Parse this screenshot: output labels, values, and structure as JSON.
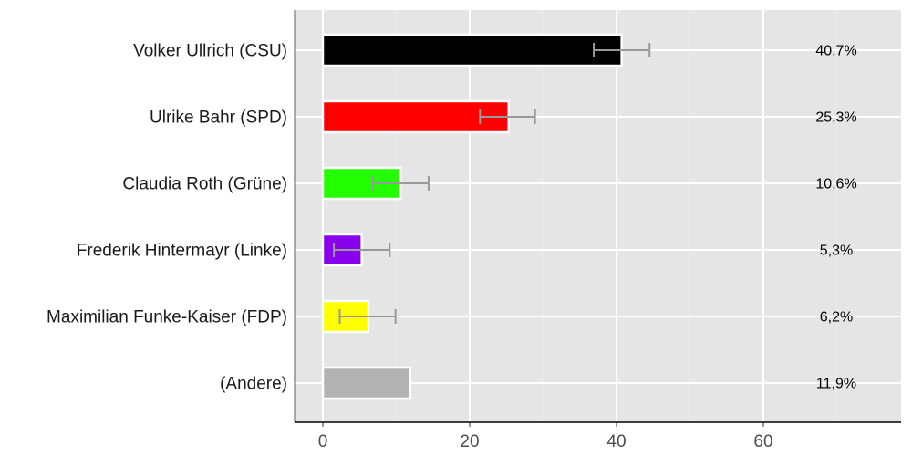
{
  "chart_data": {
    "type": "bar",
    "orientation": "horizontal",
    "title": "",
    "xlabel": "",
    "ylabel": "",
    "xlim": [
      -3.8,
      78.8
    ],
    "x_ticks": [
      0,
      20,
      40,
      60
    ],
    "x_tick_labels": [
      "0",
      "20",
      "40",
      "60"
    ],
    "grid": true,
    "legend": "none",
    "categories": [
      "Volker Ullrich (CSU)",
      "Ulrike Bahr (SPD)",
      "Claudia Roth (Grüne)",
      "Frederik Hintermayr (Linke)",
      "Maximilian Funke-Kaiser (FDP)",
      "(Andere)"
    ],
    "values": [
      40.7,
      25.3,
      10.6,
      5.3,
      6.2,
      11.9
    ],
    "value_labels": [
      "40,7%",
      "25,3%",
      "10,6%",
      "5,3%",
      "6,2%",
      "11,9%"
    ],
    "error_low": [
      36.9,
      21.4,
      6.8,
      1.5,
      2.3,
      null
    ],
    "error_high": [
      44.5,
      28.9,
      14.4,
      9.1,
      9.9,
      null
    ],
    "colors": [
      "#000000",
      "#ff0000",
      "#22ff00",
      "#8800ee",
      "#ffff00",
      "#b3b3b3"
    ]
  },
  "style": {
    "panel_bg": "#e5e5e5",
    "grid_color": "#ffffff",
    "error_bar_color": "#999999",
    "axis_color": "#000000"
  }
}
